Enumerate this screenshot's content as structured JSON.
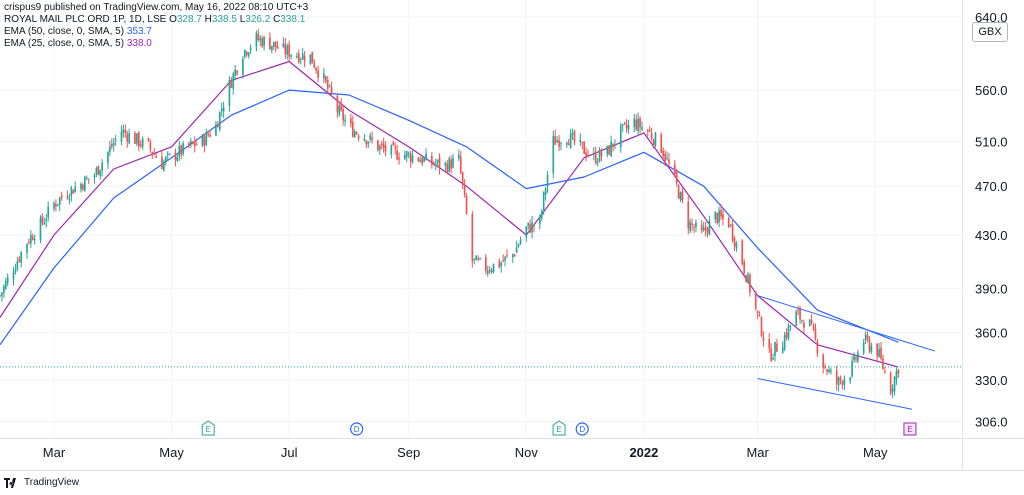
{
  "header": {
    "publish_line": "crispus9 published on TradingView.com, May 16, 2022 08:10 UTC+3",
    "symbol": "ROYAL MAIL PLC ORD 1P, 1D, LSE",
    "ohlc": [
      {
        "k": "O",
        "v": "328.7"
      },
      {
        "k": "H",
        "v": "338.5"
      },
      {
        "k": "L",
        "v": "326.2"
      },
      {
        "k": "C",
        "v": "338.1"
      }
    ],
    "ema50_label": "EMA (50, close, 0, SMA, 5)",
    "ema50_value": "353.7",
    "ema25_label": "EMA (25, close, 0, SMA, 5)",
    "ema25_value": "338.0",
    "top_clipped_tick": "640.0"
  },
  "unit": "GBX",
  "footer": {
    "brand": "TradingView"
  },
  "colors": {
    "up": "#26a69a",
    "down": "#ef5350",
    "ema50": "#2962ff",
    "ema25": "#9c27b0",
    "channel": "#2962ff",
    "earnings": "#26a69a",
    "dividend": "#2962ff",
    "future_event": "#9c27b0",
    "last_price_line": "#26a69a"
  },
  "chart_data": {
    "type": "candlestick",
    "y_scale": "log",
    "ylim": [
      297,
      660
    ],
    "y_ticks": [
      {
        "label": "640.0",
        "value": 640
      },
      {
        "label": "560.0",
        "value": 560
      },
      {
        "label": "510.0",
        "value": 510
      },
      {
        "label": "470.0",
        "value": 470
      },
      {
        "label": "430.0",
        "value": 430
      },
      {
        "label": "390.0",
        "value": 390
      },
      {
        "label": "360.0",
        "value": 360
      },
      {
        "label": "330.0",
        "value": 330
      },
      {
        "label": "306.0",
        "value": 306
      }
    ],
    "xlim": [
      "2021-02-01",
      "2022-06-15"
    ],
    "x_ticks": [
      {
        "label": "Mar",
        "date": "2021-03-01",
        "bold": false
      },
      {
        "label": "May",
        "date": "2021-05-01",
        "bold": false
      },
      {
        "label": "Jul",
        "date": "2021-07-01",
        "bold": false
      },
      {
        "label": "Sep",
        "date": "2021-09-01",
        "bold": false
      },
      {
        "label": "Nov",
        "date": "2021-11-01",
        "bold": false
      },
      {
        "label": "2022",
        "date": "2022-01-01",
        "bold": true
      },
      {
        "label": "Mar",
        "date": "2022-03-01",
        "bold": false
      },
      {
        "label": "May",
        "date": "2022-05-01",
        "bold": false
      }
    ],
    "close_path": [
      [
        "2021-02-01",
        385
      ],
      [
        "2021-02-08",
        405
      ],
      [
        "2021-02-15",
        425
      ],
      [
        "2021-02-22",
        438
      ],
      [
        "2021-03-01",
        455
      ],
      [
        "2021-03-08",
        465
      ],
      [
        "2021-03-15",
        472
      ],
      [
        "2021-03-22",
        480
      ],
      [
        "2021-03-29",
        500
      ],
      [
        "2021-04-05",
        520
      ],
      [
        "2021-04-12",
        512
      ],
      [
        "2021-04-19",
        505
      ],
      [
        "2021-04-26",
        490
      ],
      [
        "2021-05-03",
        498
      ],
      [
        "2021-05-10",
        505
      ],
      [
        "2021-05-17",
        510
      ],
      [
        "2021-05-24",
        525
      ],
      [
        "2021-05-31",
        565
      ],
      [
        "2021-06-07",
        600
      ],
      [
        "2021-06-14",
        615
      ],
      [
        "2021-06-21",
        610
      ],
      [
        "2021-06-28",
        602
      ],
      [
        "2021-07-05",
        598
      ],
      [
        "2021-07-12",
        595
      ],
      [
        "2021-07-19",
        570
      ],
      [
        "2021-07-26",
        540
      ],
      [
        "2021-08-02",
        522
      ],
      [
        "2021-08-09",
        515
      ],
      [
        "2021-08-16",
        505
      ],
      [
        "2021-08-23",
        500
      ],
      [
        "2021-08-30",
        498
      ],
      [
        "2021-09-06",
        495
      ],
      [
        "2021-09-13",
        490
      ],
      [
        "2021-09-20",
        488
      ],
      [
        "2021-09-27",
        493
      ],
      [
        "2021-10-04",
        410
      ],
      [
        "2021-10-11",
        405
      ],
      [
        "2021-10-18",
        408
      ],
      [
        "2021-10-25",
        415
      ],
      [
        "2021-11-01",
        435
      ],
      [
        "2021-11-08",
        440
      ],
      [
        "2021-11-15",
        510
      ],
      [
        "2021-11-22",
        515
      ],
      [
        "2021-11-29",
        505
      ],
      [
        "2021-12-06",
        495
      ],
      [
        "2021-12-13",
        500
      ],
      [
        "2021-12-20",
        518
      ],
      [
        "2021-12-27",
        528
      ],
      [
        "2022-01-03",
        520
      ],
      [
        "2022-01-10",
        505
      ],
      [
        "2022-01-17",
        475
      ],
      [
        "2022-01-24",
        440
      ],
      [
        "2022-01-31",
        430
      ],
      [
        "2022-02-07",
        445
      ],
      [
        "2022-02-14",
        440
      ],
      [
        "2022-02-21",
        410
      ],
      [
        "2022-02-28",
        375
      ],
      [
        "2022-03-07",
        345
      ],
      [
        "2022-03-14",
        355
      ],
      [
        "2022-03-21",
        372
      ],
      [
        "2022-03-28",
        365
      ],
      [
        "2022-04-04",
        340
      ],
      [
        "2022-04-11",
        328
      ],
      [
        "2022-04-18",
        335
      ],
      [
        "2022-04-25",
        355
      ],
      [
        "2022-05-02",
        348
      ],
      [
        "2022-05-09",
        325
      ],
      [
        "2022-05-13",
        338.1
      ]
    ],
    "series": [
      {
        "name": "EMA (50, close, 0, SMA, 5)",
        "color": "#2962ff",
        "points": [
          [
            "2021-02-01",
            352
          ],
          [
            "2021-03-01",
            405
          ],
          [
            "2021-04-01",
            460
          ],
          [
            "2021-05-01",
            495
          ],
          [
            "2021-06-01",
            535
          ],
          [
            "2021-07-01",
            560
          ],
          [
            "2021-08-01",
            555
          ],
          [
            "2021-09-01",
            530
          ],
          [
            "2021-10-01",
            505
          ],
          [
            "2021-11-01",
            468
          ],
          [
            "2021-12-01",
            478
          ],
          [
            "2022-01-01",
            500
          ],
          [
            "2022-02-01",
            470
          ],
          [
            "2022-03-01",
            420
          ],
          [
            "2022-04-01",
            375
          ],
          [
            "2022-05-13",
            353.7
          ]
        ]
      },
      {
        "name": "EMA (25, close, 0, SMA, 5)",
        "color": "#9c27b0",
        "points": [
          [
            "2021-02-01",
            370
          ],
          [
            "2021-03-01",
            430
          ],
          [
            "2021-04-01",
            485
          ],
          [
            "2021-05-01",
            505
          ],
          [
            "2021-06-01",
            570
          ],
          [
            "2021-07-01",
            590
          ],
          [
            "2021-08-01",
            540
          ],
          [
            "2021-09-01",
            505
          ],
          [
            "2021-10-01",
            470
          ],
          [
            "2021-11-01",
            430
          ],
          [
            "2021-12-01",
            495
          ],
          [
            "2022-01-01",
            518
          ],
          [
            "2022-02-01",
            445
          ],
          [
            "2022-03-01",
            385
          ],
          [
            "2022-04-01",
            352
          ],
          [
            "2022-05-13",
            338.0
          ]
        ]
      }
    ],
    "channel": {
      "upper": [
        [
          "2022-03-01",
          385
        ],
        [
          "2022-06-01",
          348
        ]
      ],
      "lower": [
        [
          "2022-03-01",
          331
        ],
        [
          "2022-05-20",
          313
        ]
      ]
    },
    "last_price": 338.1,
    "events": [
      {
        "label": "E",
        "date": "2021-05-20",
        "kind": "earnings"
      },
      {
        "label": "D",
        "date": "2021-08-05",
        "kind": "dividend"
      },
      {
        "label": "E",
        "date": "2021-11-18",
        "kind": "earnings"
      },
      {
        "label": "D",
        "date": "2021-11-30",
        "kind": "dividend"
      },
      {
        "label": "E",
        "date": "2022-05-19",
        "kind": "future"
      }
    ]
  }
}
